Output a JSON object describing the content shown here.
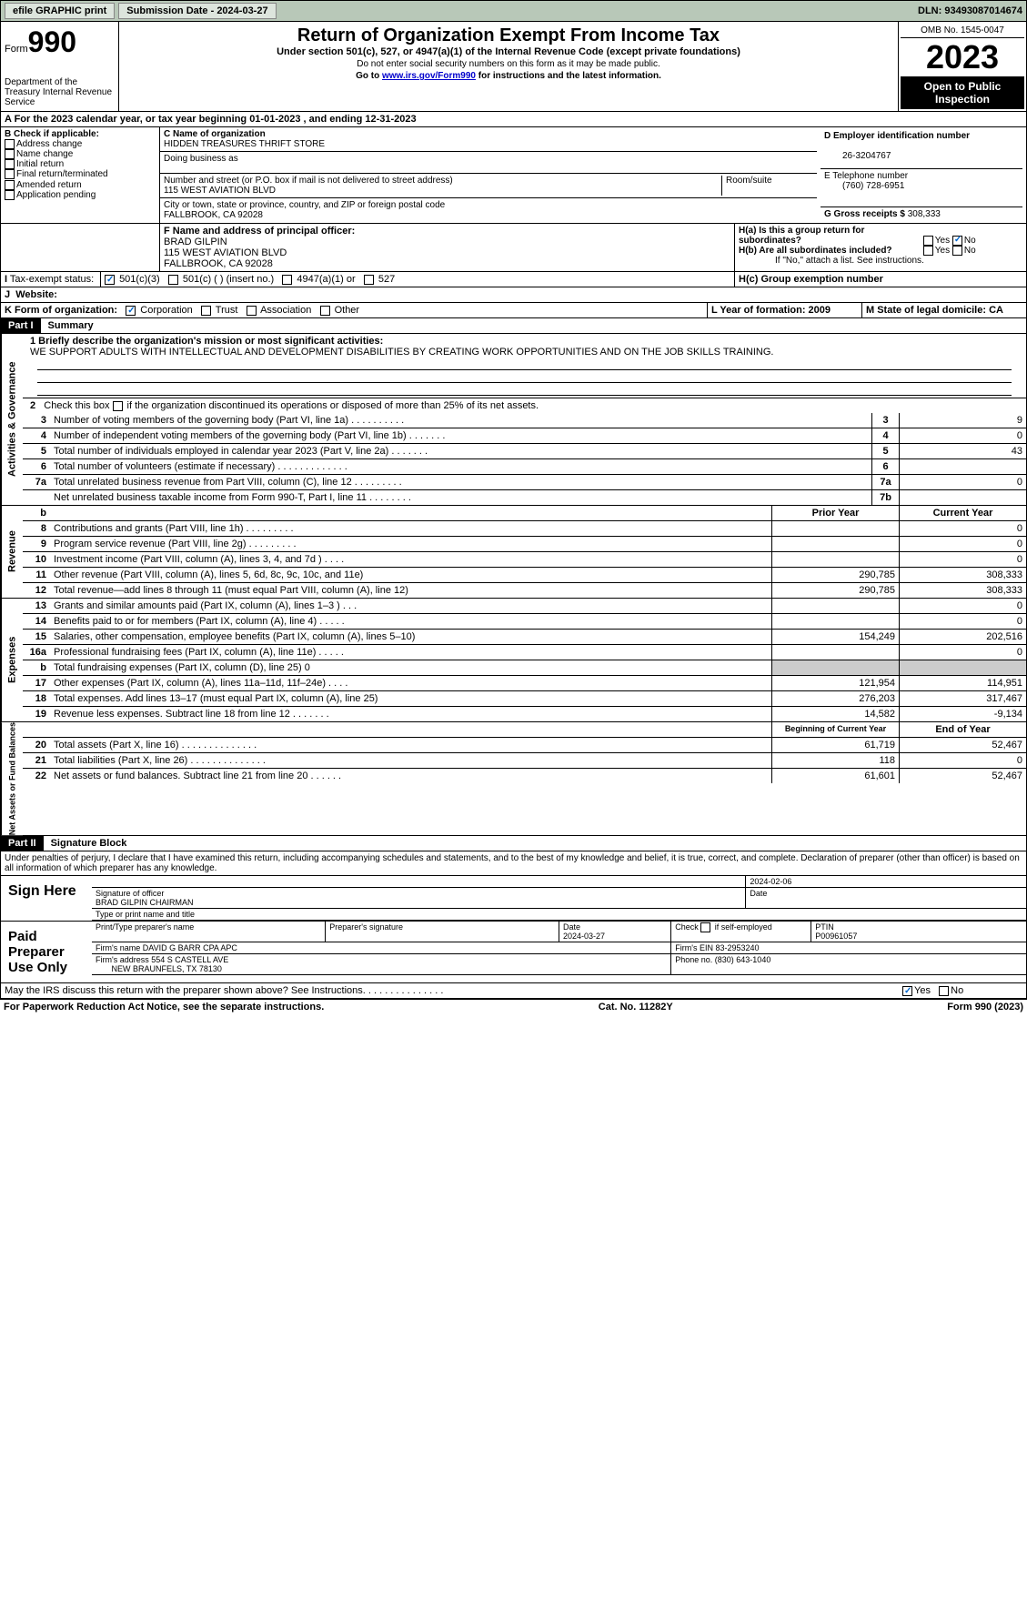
{
  "topbar": {
    "efile": "efile GRAPHIC print",
    "submission_label": "Submission Date - 2024-03-27",
    "dln": "DLN: 93493087014674"
  },
  "header": {
    "form_word": "Form",
    "form_num": "990",
    "dept": "Department of the Treasury Internal Revenue Service",
    "title": "Return of Organization Exempt From Income Tax",
    "sub1": "Under section 501(c), 527, or 4947(a)(1) of the Internal Revenue Code (except private foundations)",
    "sub2": "Do not enter social security numbers on this form as it may be made public.",
    "sub3_pre": "Go to ",
    "sub3_link": "www.irs.gov/Form990",
    "sub3_post": " for instructions and the latest information.",
    "omb": "OMB No. 1545-0047",
    "year": "2023",
    "inspect": "Open to Public Inspection"
  },
  "lineA": "A For the 2023 calendar year, or tax year beginning 01-01-2023   , and ending 12-31-2023",
  "boxB": {
    "hdr": "B Check if applicable:",
    "opts": [
      "Address change",
      "Name change",
      "Initial return",
      "Final return/terminated",
      "Amended return",
      "Application pending"
    ]
  },
  "boxC": {
    "name_lbl": "C Name of organization",
    "name": "HIDDEN TREASURES THRIFT STORE",
    "dba_lbl": "Doing business as",
    "addr_lbl": "Number and street (or P.O. box if mail is not delivered to street address)",
    "addr": "115 WEST AVIATION BLVD",
    "room_lbl": "Room/suite",
    "city_lbl": "City or town, state or province, country, and ZIP or foreign postal code",
    "city": "FALLBROOK, CA  92028"
  },
  "boxD": {
    "lbl": "D Employer identification number",
    "val": "26-3204767"
  },
  "boxE": {
    "lbl": "E Telephone number",
    "val": "(760) 728-6951"
  },
  "boxG": {
    "lbl": "G Gross receipts $ ",
    "val": "308,333"
  },
  "boxF": {
    "lbl": "F Name and address of principal officer:",
    "name": "BRAD GILPIN",
    "addr": "115 WEST AVIATION BLVD",
    "city": "FALLBROOK, CA  92028"
  },
  "boxH": {
    "a": "H(a)  Is this a group return for subordinates?",
    "b": "H(b)  Are all subordinates included?",
    "note": "If \"No,\" attach a list. See instructions.",
    "c": "H(c)  Group exemption number "
  },
  "boxI": {
    "lbl": "Tax-exempt status:",
    "o1": "501(c)(3)",
    "o2": "501(c) (  ) (insert no.)",
    "o3": "4947(a)(1) or",
    "o4": "527"
  },
  "boxJ": "Website: ",
  "boxK": {
    "lbl": "K Form of organization:",
    "o1": "Corporation",
    "o2": "Trust",
    "o3": "Association",
    "o4": "Other"
  },
  "boxL": "L Year of formation: 2009",
  "boxM": "M State of legal domicile: CA",
  "part1": {
    "num": "Part I",
    "title": "Summary"
  },
  "mission_lbl": "1   Briefly describe the organization's mission or most significant activities:",
  "mission": "WE SUPPORT ADULTS WITH INTELLECTUAL AND DEVELOPMENT DISABILITIES BY CREATING WORK OPPORTUNITIES AND ON THE JOB SKILLS TRAINING.",
  "line2": "2   Check this box          if the organization discontinued its operations or disposed of more than 25% of its net assets.",
  "gov_lines": [
    {
      "n": "3",
      "t": "Number of voting members of the governing body (Part VI, line 1a)   .    .    .    .    .    .    .    .    .    .",
      "b": "3",
      "v": "9"
    },
    {
      "n": "4",
      "t": "Number of independent voting members of the governing body (Part VI, line 1b)    .    .    .    .    .    .    .",
      "b": "4",
      "v": "0"
    },
    {
      "n": "5",
      "t": "Total number of individuals employed in calendar year 2023 (Part V, line 2a)   .    .    .    .    .    .    .",
      "b": "5",
      "v": "43"
    },
    {
      "n": "6",
      "t": "Total number of volunteers (estimate if necessary)    .    .    .    .    .    .    .    .    .    .    .    .    .",
      "b": "6",
      "v": ""
    },
    {
      "n": "7a",
      "t": "Total unrelated business revenue from Part VIII, column (C), line 12   .    .    .    .    .    .    .    .    .",
      "b": "7a",
      "v": "0"
    },
    {
      "n": "",
      "t": "Net unrelated business taxable income from Form 990-T, Part I, line 11    .    .    .    .    .    .    .    .",
      "b": "7b",
      "v": ""
    }
  ],
  "rev_hdr": {
    "b": "b",
    "py": "Prior Year",
    "cy": "Current Year"
  },
  "rev_lines": [
    {
      "n": "8",
      "t": "Contributions and grants (Part VIII, line 1h)    .    .    .    .    .    .    .    .    .",
      "py": "",
      "cy": "0"
    },
    {
      "n": "9",
      "t": "Program service revenue (Part VIII, line 2g)    .    .    .    .    .    .    .    .    .",
      "py": "",
      "cy": "0"
    },
    {
      "n": "10",
      "t": "Investment income (Part VIII, column (A), lines 3, 4, and 7d )    .    .    .    .",
      "py": "",
      "cy": "0"
    },
    {
      "n": "11",
      "t": "Other revenue (Part VIII, column (A), lines 5, 6d, 8c, 9c, 10c, and 11e)",
      "py": "290,785",
      "cy": "308,333"
    },
    {
      "n": "12",
      "t": "Total revenue—add lines 8 through 11 (must equal Part VIII, column (A), line 12)",
      "py": "290,785",
      "cy": "308,333"
    }
  ],
  "exp_lines": [
    {
      "n": "13",
      "t": "Grants and similar amounts paid (Part IX, column (A), lines 1–3 )    .    .    .",
      "py": "",
      "cy": "0"
    },
    {
      "n": "14",
      "t": "Benefits paid to or for members (Part IX, column (A), line 4)    .    .    .    .    .",
      "py": "",
      "cy": "0"
    },
    {
      "n": "15",
      "t": "Salaries, other compensation, employee benefits (Part IX, column (A), lines 5–10)",
      "py": "154,249",
      "cy": "202,516"
    },
    {
      "n": "16a",
      "t": "Professional fundraising fees (Part IX, column (A), line 11e)    .    .    .    .    .",
      "py": "",
      "cy": "0"
    },
    {
      "n": "b",
      "t": "Total fundraising expenses (Part IX, column (D), line 25) 0",
      "py": "GRAY",
      "cy": "GRAY"
    },
    {
      "n": "17",
      "t": "Other expenses (Part IX, column (A), lines 11a–11d, 11f–24e)    .    .    .    .",
      "py": "121,954",
      "cy": "114,951"
    },
    {
      "n": "18",
      "t": "Total expenses. Add lines 13–17 (must equal Part IX, column (A), line 25)",
      "py": "276,203",
      "cy": "317,467"
    },
    {
      "n": "19",
      "t": "Revenue less expenses. Subtract line 18 from line 12    .    .    .    .    .    .    .",
      "py": "14,582",
      "cy": "-9,134"
    }
  ],
  "net_hdr": {
    "py": "Beginning of Current Year",
    "cy": "End of Year"
  },
  "net_lines": [
    {
      "n": "20",
      "t": "Total assets (Part X, line 16)    .    .    .    .    .    .    .    .    .    .    .    .    .    .",
      "py": "61,719",
      "cy": "52,467"
    },
    {
      "n": "21",
      "t": "Total liabilities (Part X, line 26)    .    .    .    .    .    .    .    .    .    .    .    .    .    .",
      "py": "118",
      "cy": "0"
    },
    {
      "n": "22",
      "t": "Net assets or fund balances. Subtract line 21 from line 20    .    .    .    .    .    .",
      "py": "61,601",
      "cy": "52,467"
    }
  ],
  "side_labels": {
    "gov": "Activities & Governance",
    "rev": "Revenue",
    "exp": "Expenses",
    "net": "Net Assets or Fund Balances"
  },
  "part2": {
    "num": "Part II",
    "title": "Signature Block"
  },
  "perjury": "Under penalties of perjury, I declare that I have examined this return, including accompanying schedules and statements, and to the best of my knowledge and belief, it is true, correct, and complete. Declaration of preparer (other than officer) is based on all information of which preparer has any knowledge.",
  "sign": {
    "here": "Sign Here",
    "date": "2024-02-06",
    "sig_lbl": "Signature of officer",
    "name": "BRAD GILPIN  CHAIRMAN",
    "type_lbl": "Type or print name and title"
  },
  "paid": {
    "title": "Paid Preparer Use Only",
    "h1": "Print/Type preparer's name",
    "h2": "Preparer's signature",
    "h3": "Date",
    "h3v": "2024-03-27",
    "h4": "Check         if self-employed",
    "h5": "PTIN",
    "h5v": "P00961057",
    "firm_lbl": "Firm's name      ",
    "firm": "DAVID G BARR CPA APC",
    "ein_lbl": "Firm's EIN  ",
    "ein": "83-2953240",
    "addr_lbl": "Firm's address ",
    "addr": "554 S CASTELL AVE",
    "addr2": "NEW BRAUNFELS, TX  78130",
    "phone_lbl": "Phone no. ",
    "phone": "(830) 643-1040"
  },
  "discuss": "May the IRS discuss this return with the preparer shown above? See Instructions.    .    .    .    .    .    .    .    .    .    .    .    .    .    .",
  "footer": {
    "l": "For Paperwork Reduction Act Notice, see the separate instructions.",
    "c": "Cat. No. 11282Y",
    "r": "Form 990 (2023)"
  },
  "yn": {
    "yes": "Yes",
    "no": "No"
  }
}
